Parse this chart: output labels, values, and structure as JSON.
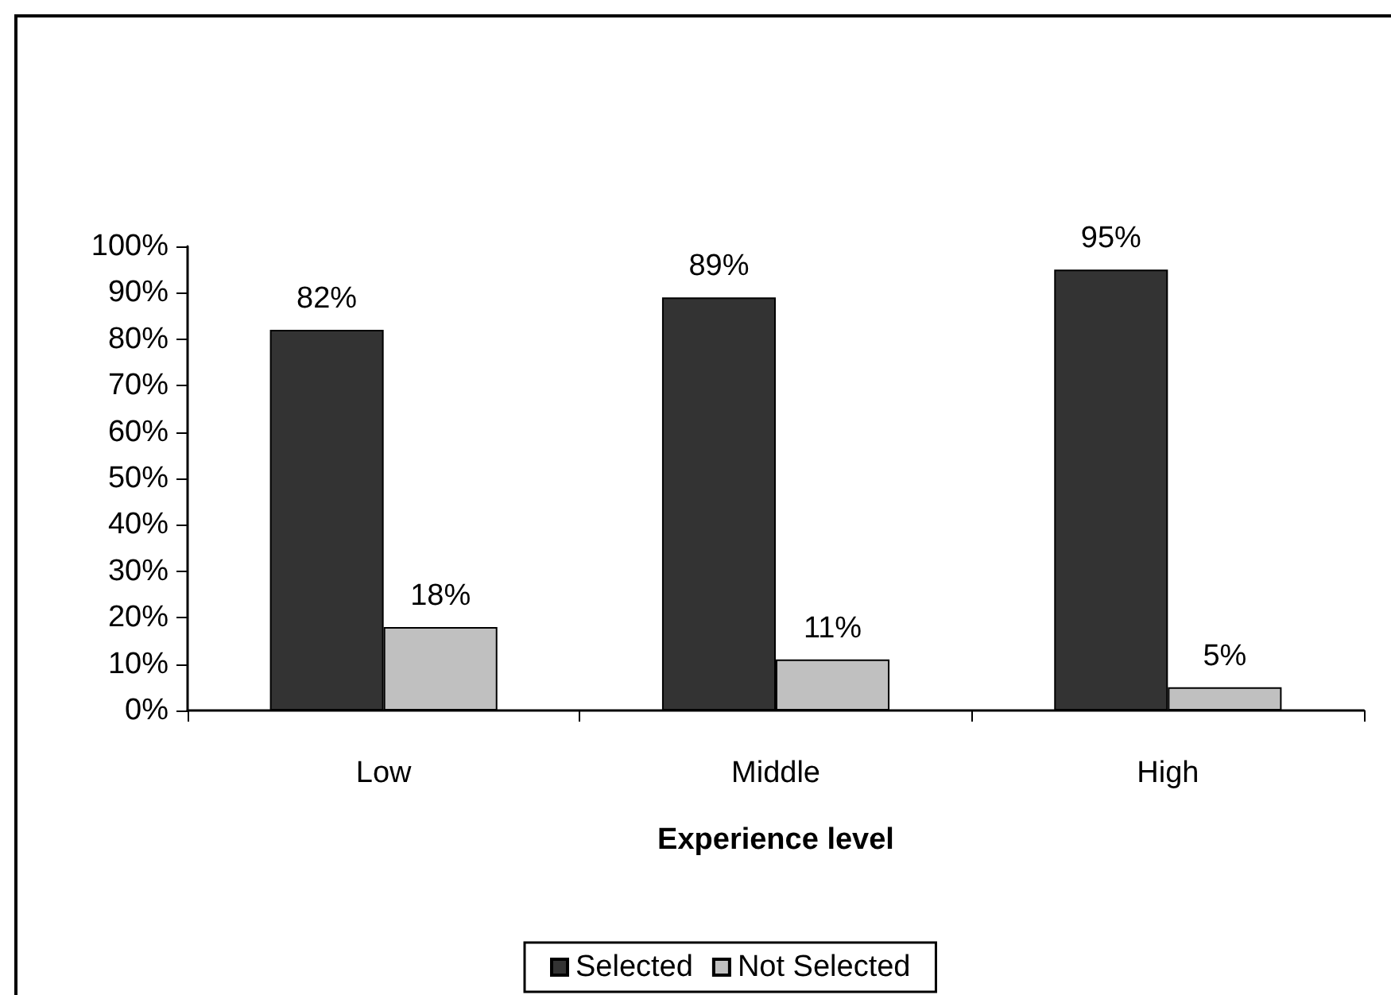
{
  "chart_data": {
    "type": "bar",
    "xlabel": "Experience level",
    "categories": [
      "Low",
      "Middle",
      "High"
    ],
    "series": [
      {
        "name": "Selected",
        "color": "#333333",
        "values": [
          82,
          89,
          95
        ],
        "value_labels": [
          "82%",
          "89%",
          "95%"
        ]
      },
      {
        "name": "Not Selected",
        "color": "#c0c0c0",
        "values": [
          18,
          11,
          5
        ],
        "value_labels": [
          "18%",
          "11%",
          "5%"
        ]
      }
    ],
    "ylim": [
      0,
      100
    ],
    "yticks": [
      {
        "value": 0,
        "label": "0%"
      },
      {
        "value": 10,
        "label": "10%"
      },
      {
        "value": 20,
        "label": "20%"
      },
      {
        "value": 30,
        "label": "30%"
      },
      {
        "value": 40,
        "label": "40%"
      },
      {
        "value": 50,
        "label": "50%"
      },
      {
        "value": 60,
        "label": "60%"
      },
      {
        "value": 70,
        "label": "70%"
      },
      {
        "value": 80,
        "label": "80%"
      },
      {
        "value": 90,
        "label": "90%"
      },
      {
        "value": 100,
        "label": "100%"
      }
    ],
    "legend": "bottom"
  }
}
